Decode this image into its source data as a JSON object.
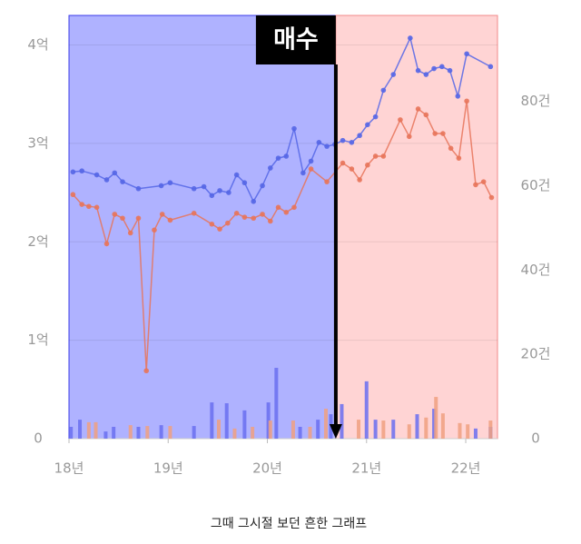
{
  "chart_data": {
    "type": "combo",
    "caption": "그때 그시절 보던 흔한 그래프",
    "xlim": [
      18,
      22.32
    ],
    "xticks": [
      {
        "value": 18,
        "label": "18년"
      },
      {
        "value": 19,
        "label": "19년"
      },
      {
        "value": 20,
        "label": "20년"
      },
      {
        "value": 21,
        "label": "21년"
      },
      {
        "value": 22,
        "label": "22년"
      }
    ],
    "ylim": [
      0,
      4.3
    ],
    "yticks": [
      0,
      {
        "value": 1,
        "label": "1억"
      },
      {
        "value": 2,
        "label": "2억"
      },
      {
        "value": 3,
        "label": "3억"
      },
      {
        "value": 4,
        "label": "4억"
      }
    ],
    "y2lim": [
      0,
      100.4
    ],
    "y2ticks": [
      0,
      {
        "value": 20,
        "label": "20건"
      },
      {
        "value": 40,
        "label": "40건"
      },
      {
        "value": 60,
        "label": "60건"
      },
      {
        "value": 80,
        "label": "80건"
      }
    ],
    "grid": true,
    "regions": [
      {
        "from": 18,
        "to": 20.69,
        "color": "#afb2ff",
        "border": "#3a3ae8"
      },
      {
        "from": 20.69,
        "to": 22.32,
        "color": "#ffd4d4",
        "border": "#f08a8a"
      }
    ],
    "annotation": {
      "text": "매수",
      "x": 20.69
    },
    "series": [
      {
        "type": "bar",
        "axis": "y2",
        "color": "#6a6ff0",
        "x": [
          18.02,
          18.11,
          18.37,
          18.45,
          18.7,
          18.93,
          19.26,
          19.44,
          19.59,
          19.77,
          20.01,
          20.09,
          20.33,
          20.51,
          20.64,
          20.75,
          21.0,
          21.09,
          21.27,
          21.51,
          21.68,
          22.1,
          22.25
        ],
        "values": [
          2.8,
          4.5,
          1.7,
          2.8,
          2.8,
          3.2,
          3.0,
          8.6,
          8.4,
          6.7,
          8.6,
          16.8,
          2.8,
          4.5,
          5.8,
          8.2,
          13.6,
          4.5,
          4.5,
          5.8,
          7.1,
          2.4,
          2.8
        ]
      },
      {
        "type": "bar",
        "axis": "y2",
        "color": "#f0a080",
        "x": [
          18.2,
          18.27,
          18.62,
          18.79,
          19.02,
          19.51,
          19.67,
          19.85,
          20.03,
          20.26,
          20.43,
          20.59,
          20.92,
          21.17,
          21.43,
          21.6,
          21.7,
          21.77,
          21.94,
          22.02,
          22.25
        ],
        "values": [
          3.9,
          3.9,
          3.2,
          3.0,
          3.0,
          4.5,
          2.4,
          2.8,
          4.3,
          4.3,
          2.8,
          7.1,
          4.5,
          4.3,
          3.4,
          5.0,
          9.9,
          6.0,
          3.7,
          3.4,
          4.3
        ]
      },
      {
        "type": "line",
        "color": "#5566e6",
        "x": [
          18.04,
          18.13,
          18.28,
          18.38,
          18.46,
          18.54,
          18.7,
          18.93,
          19.02,
          19.26,
          19.36,
          19.44,
          19.52,
          19.61,
          19.69,
          19.77,
          19.86,
          19.95,
          20.03,
          20.11,
          20.19,
          20.27,
          20.36,
          20.44,
          20.52,
          20.6,
          20.68,
          20.76,
          20.85,
          20.93,
          21.01,
          21.09,
          21.17,
          21.27,
          21.44,
          21.52,
          21.6,
          21.68,
          21.76,
          21.84,
          21.92,
          22.01,
          22.25
        ],
        "values": [
          2.71,
          2.72,
          2.68,
          2.63,
          2.7,
          2.61,
          2.54,
          2.57,
          2.6,
          2.54,
          2.56,
          2.47,
          2.52,
          2.5,
          2.68,
          2.6,
          2.41,
          2.57,
          2.75,
          2.85,
          2.87,
          3.15,
          2.7,
          2.82,
          3.01,
          2.97,
          2.99,
          3.03,
          3.01,
          3.08,
          3.19,
          3.27,
          3.54,
          3.7,
          4.07,
          3.74,
          3.7,
          3.76,
          3.78,
          3.74,
          3.48,
          3.91,
          3.78
        ]
      },
      {
        "type": "line",
        "color": "#e8745a",
        "x": [
          18.04,
          18.13,
          18.2,
          18.28,
          18.38,
          18.46,
          18.54,
          18.62,
          18.7,
          18.78,
          18.86,
          18.94,
          19.02,
          19.26,
          19.44,
          19.52,
          19.6,
          19.69,
          19.77,
          19.86,
          19.95,
          20.03,
          20.11,
          20.19,
          20.27,
          20.44,
          20.6,
          20.76,
          20.85,
          20.93,
          21.01,
          21.09,
          21.17,
          21.34,
          21.43,
          21.52,
          21.6,
          21.69,
          21.77,
          21.85,
          21.93,
          22.01,
          22.1,
          22.18,
          22.26
        ],
        "values": [
          2.48,
          2.38,
          2.36,
          2.35,
          1.98,
          2.28,
          2.24,
          2.09,
          2.24,
          0.69,
          2.12,
          2.28,
          2.22,
          2.29,
          2.18,
          2.13,
          2.19,
          2.29,
          2.25,
          2.24,
          2.28,
          2.21,
          2.35,
          2.3,
          2.35,
          2.74,
          2.61,
          2.8,
          2.74,
          2.63,
          2.78,
          2.87,
          2.87,
          3.24,
          3.07,
          3.35,
          3.29,
          3.1,
          3.1,
          2.95,
          2.85,
          3.43,
          2.58,
          2.61,
          2.45
        ]
      }
    ]
  }
}
